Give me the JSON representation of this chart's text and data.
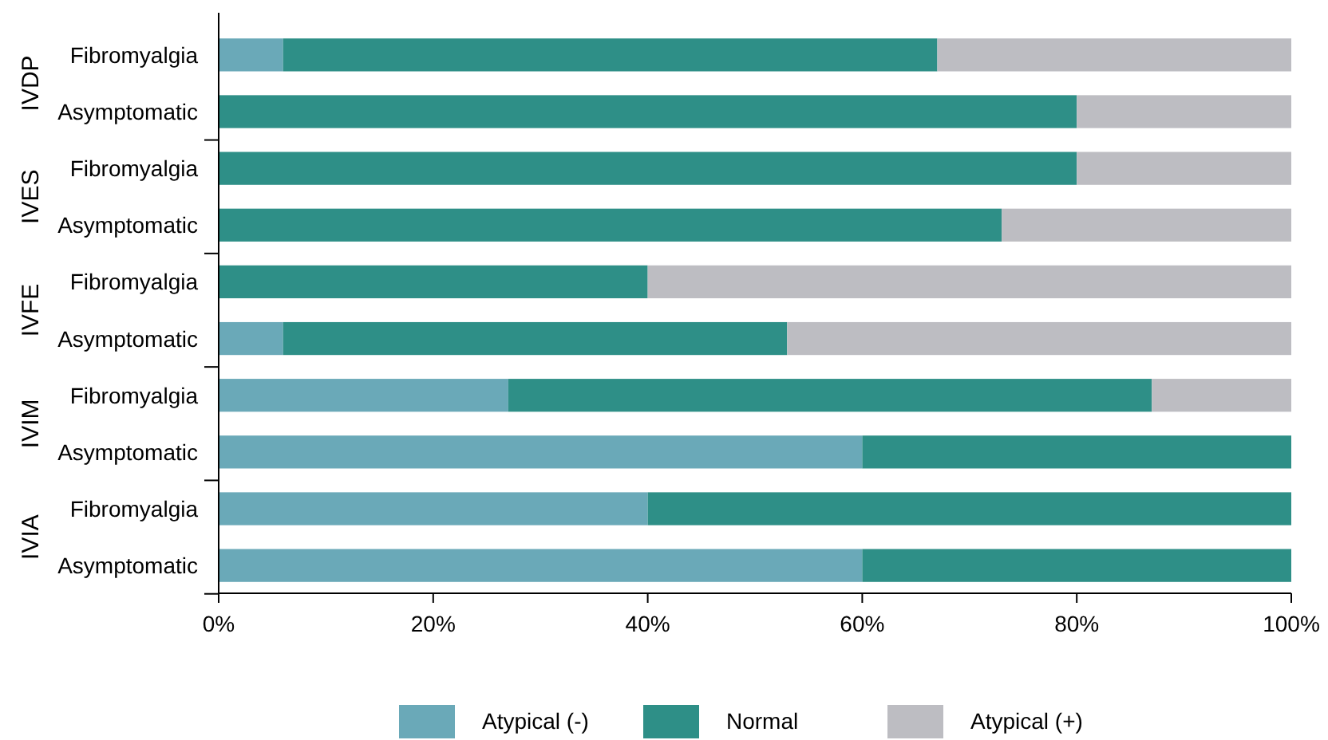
{
  "chart_data": {
    "type": "bar",
    "orientation": "horizontal",
    "stacked": true,
    "categories": [
      "Fibromyalgia",
      "Asymptomatic",
      "Fibromyalgia",
      "Asymptomatic",
      "Fibromyalgia",
      "Asymptomatic",
      "Fibromyalgia",
      "Asymptomatic",
      "Fibromyalgia",
      "Asymptomatic"
    ],
    "series": [
      {
        "name": "Atypical (-)",
        "color": "#6aa9b8",
        "values": [
          6,
          0,
          0,
          0,
          0,
          6,
          27,
          60,
          40,
          60
        ]
      },
      {
        "name": "Normal",
        "color": "#2e8f87",
        "values": [
          61,
          80,
          80,
          73,
          40,
          47,
          60,
          40,
          60,
          40
        ]
      },
      {
        "name": "Atypical (+)",
        "color": "#bdbdc2",
        "values": [
          33,
          20,
          20,
          27,
          60,
          47,
          13,
          0,
          0,
          0
        ]
      }
    ],
    "annotations": [
      "IVDP",
      "IVES",
      "IVFE",
      "IVIM",
      "IVIA"
    ],
    "xlim": [
      0,
      100
    ],
    "xticks": [
      {
        "value": 0,
        "label": "0%"
      },
      {
        "value": 20,
        "label": "20%"
      },
      {
        "value": 40,
        "label": "40%"
      },
      {
        "value": 60,
        "label": "60%"
      },
      {
        "value": 80,
        "label": "80%"
      },
      {
        "value": 100,
        "label": "100%"
      }
    ],
    "grid": false,
    "legend": "bottom"
  }
}
